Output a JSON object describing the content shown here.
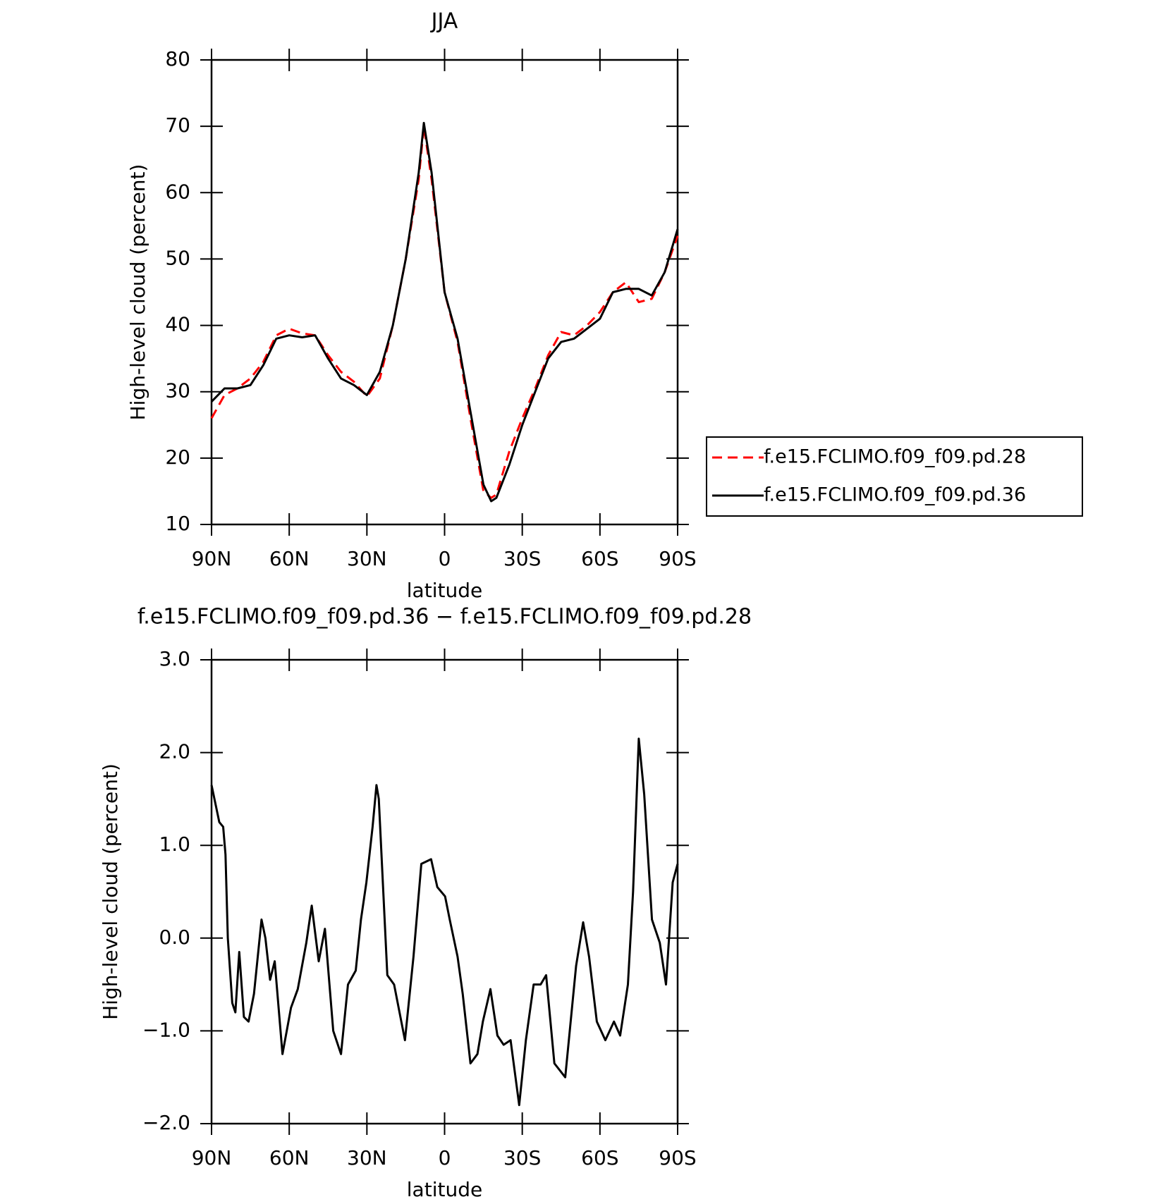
{
  "chart_data": [
    {
      "type": "line",
      "title": "JJA",
      "xlabel": "latitude",
      "ylabel": "High-level cloud (percent)",
      "xlim": [
        90,
        -90
      ],
      "xticks": [
        {
          "value": 90,
          "label": "90N"
        },
        {
          "value": 60,
          "label": "60N"
        },
        {
          "value": 30,
          "label": "30N"
        },
        0,
        {
          "value": -30,
          "label": "30S"
        },
        {
          "value": -60,
          "label": "60S"
        },
        {
          "value": -90,
          "label": "90S"
        }
      ],
      "ylim": [
        10,
        80
      ],
      "yticks": [
        10,
        20,
        30,
        40,
        50,
        60,
        70,
        80
      ],
      "legend": "right",
      "x": [
        90,
        85,
        80,
        75,
        70,
        65,
        60,
        55,
        50,
        45,
        40,
        35,
        30,
        25,
        20,
        15,
        10,
        8,
        5,
        0,
        -5,
        -10,
        -15,
        -18,
        -20,
        -25,
        -30,
        -35,
        -40,
        -45,
        -50,
        -55,
        -60,
        -65,
        -70,
        -75,
        -80,
        -85,
        -90
      ],
      "series": [
        {
          "name": "f.e15.FCLIMO.f09_f09.pd.28",
          "color": "#ff0000",
          "line_style": "dashed",
          "values": [
            26,
            29.5,
            30.5,
            32,
            34.5,
            38.5,
            39.5,
            38.8,
            38.5,
            35.5,
            33,
            31.5,
            29.3,
            32,
            40,
            50,
            62,
            70,
            62,
            45,
            37.5,
            26,
            15,
            14,
            14.5,
            21,
            26,
            30.5,
            35.5,
            39,
            38.5,
            40,
            42,
            45,
            46.5,
            43.5,
            44,
            48,
            53.5
          ]
        },
        {
          "name": "f.e15.FCLIMO.f09_f09.pd.36",
          "color": "#000000",
          "line_style": "solid",
          "values": [
            28.5,
            30.5,
            30.5,
            31,
            34,
            38,
            38.5,
            38.2,
            38.5,
            35,
            32,
            31,
            29.5,
            33,
            40,
            50,
            63,
            70.5,
            63,
            45,
            38,
            27,
            16,
            13.5,
            14,
            19,
            25,
            30,
            35,
            37.5,
            38,
            39.5,
            41,
            45,
            45.5,
            45.5,
            44.5,
            48,
            54.5
          ]
        }
      ]
    },
    {
      "type": "line",
      "title": "f.e15.FCLIMO.f09_f09.pd.36 − f.e15.FCLIMO.f09_f09.pd.28",
      "xlabel": "latitude",
      "ylabel": "High-level cloud (percent)",
      "xlim": [
        90,
        -90
      ],
      "xticks": [
        {
          "value": 90,
          "label": "90N"
        },
        {
          "value": 60,
          "label": "60N"
        },
        {
          "value": 30,
          "label": "30N"
        },
        0,
        {
          "value": -30,
          "label": "30S"
        },
        {
          "value": -60,
          "label": "60S"
        },
        {
          "value": -90,
          "label": "90S"
        }
      ],
      "ylim": [
        -2,
        3
      ],
      "yticks": [
        {
          "value": -2,
          "label": "−2.0"
        },
        {
          "value": -1,
          "label": "−1.0"
        },
        {
          "value": 0,
          "label": "0.0"
        },
        {
          "value": 1,
          "label": "1.0"
        },
        {
          "value": 2,
          "label": "2.0"
        },
        {
          "value": 3,
          "label": "3.0"
        }
      ],
      "color": "#000000",
      "x": [
        90,
        87,
        85.5,
        84.6,
        83.7,
        82,
        80.8,
        79.3,
        77.5,
        75.7,
        73.6,
        70.7,
        69.2,
        67.4,
        65.6,
        62.6,
        59.3,
        56.7,
        53.4,
        51.3,
        48.6,
        46.2,
        43,
        40,
        37.3,
        34.3,
        32.3,
        30.2,
        27.8,
        26.3,
        25.4,
        22.1,
        19.5,
        15.3,
        12,
        9,
        5.2,
        2.8,
        -0.2,
        -2,
        -5,
        -7,
        -10,
        -12.7,
        -14.8,
        -17.7,
        -20.4,
        -22.8,
        -25.5,
        -28.8,
        -31.4,
        -34.4,
        -37.1,
        -39.2,
        -42.4,
        -46.6,
        -50.8,
        -53.5,
        -55.8,
        -58.8,
        -62.1,
        -65.4,
        -67.8,
        -70.8,
        -72.8,
        -75,
        -77.1,
        -80.1,
        -83.1,
        -85.5,
        -88.1,
        -90
      ],
      "values": [
        1.65,
        1.25,
        1.2,
        0.9,
        0,
        -0.7,
        -0.8,
        -0.15,
        -0.85,
        -0.9,
        -0.6,
        0.2,
        0,
        -0.45,
        -0.25,
        -1.25,
        -0.75,
        -0.55,
        -0.05,
        0.35,
        -0.25,
        0.1,
        -1,
        -1.25,
        -0.5,
        -0.35,
        0.2,
        0.6,
        1.2,
        1.65,
        1.5,
        -0.4,
        -0.5,
        -1.1,
        -0.2,
        0.8,
        0.85,
        0.55,
        0.45,
        0.2,
        -0.2,
        -0.6,
        -1.35,
        -1.25,
        -0.9,
        -0.55,
        -1.05,
        -1.15,
        -1.1,
        -1.8,
        -1.1,
        -0.5,
        -0.5,
        -0.4,
        -1.35,
        -1.5,
        -0.3,
        0.17,
        -0.2,
        -0.9,
        -1.1,
        -0.9,
        -1.05,
        -0.5,
        0.5,
        2.15,
        1.55,
        0.2,
        -0.05,
        -0.5,
        0.6,
        0.8
      ]
    }
  ]
}
